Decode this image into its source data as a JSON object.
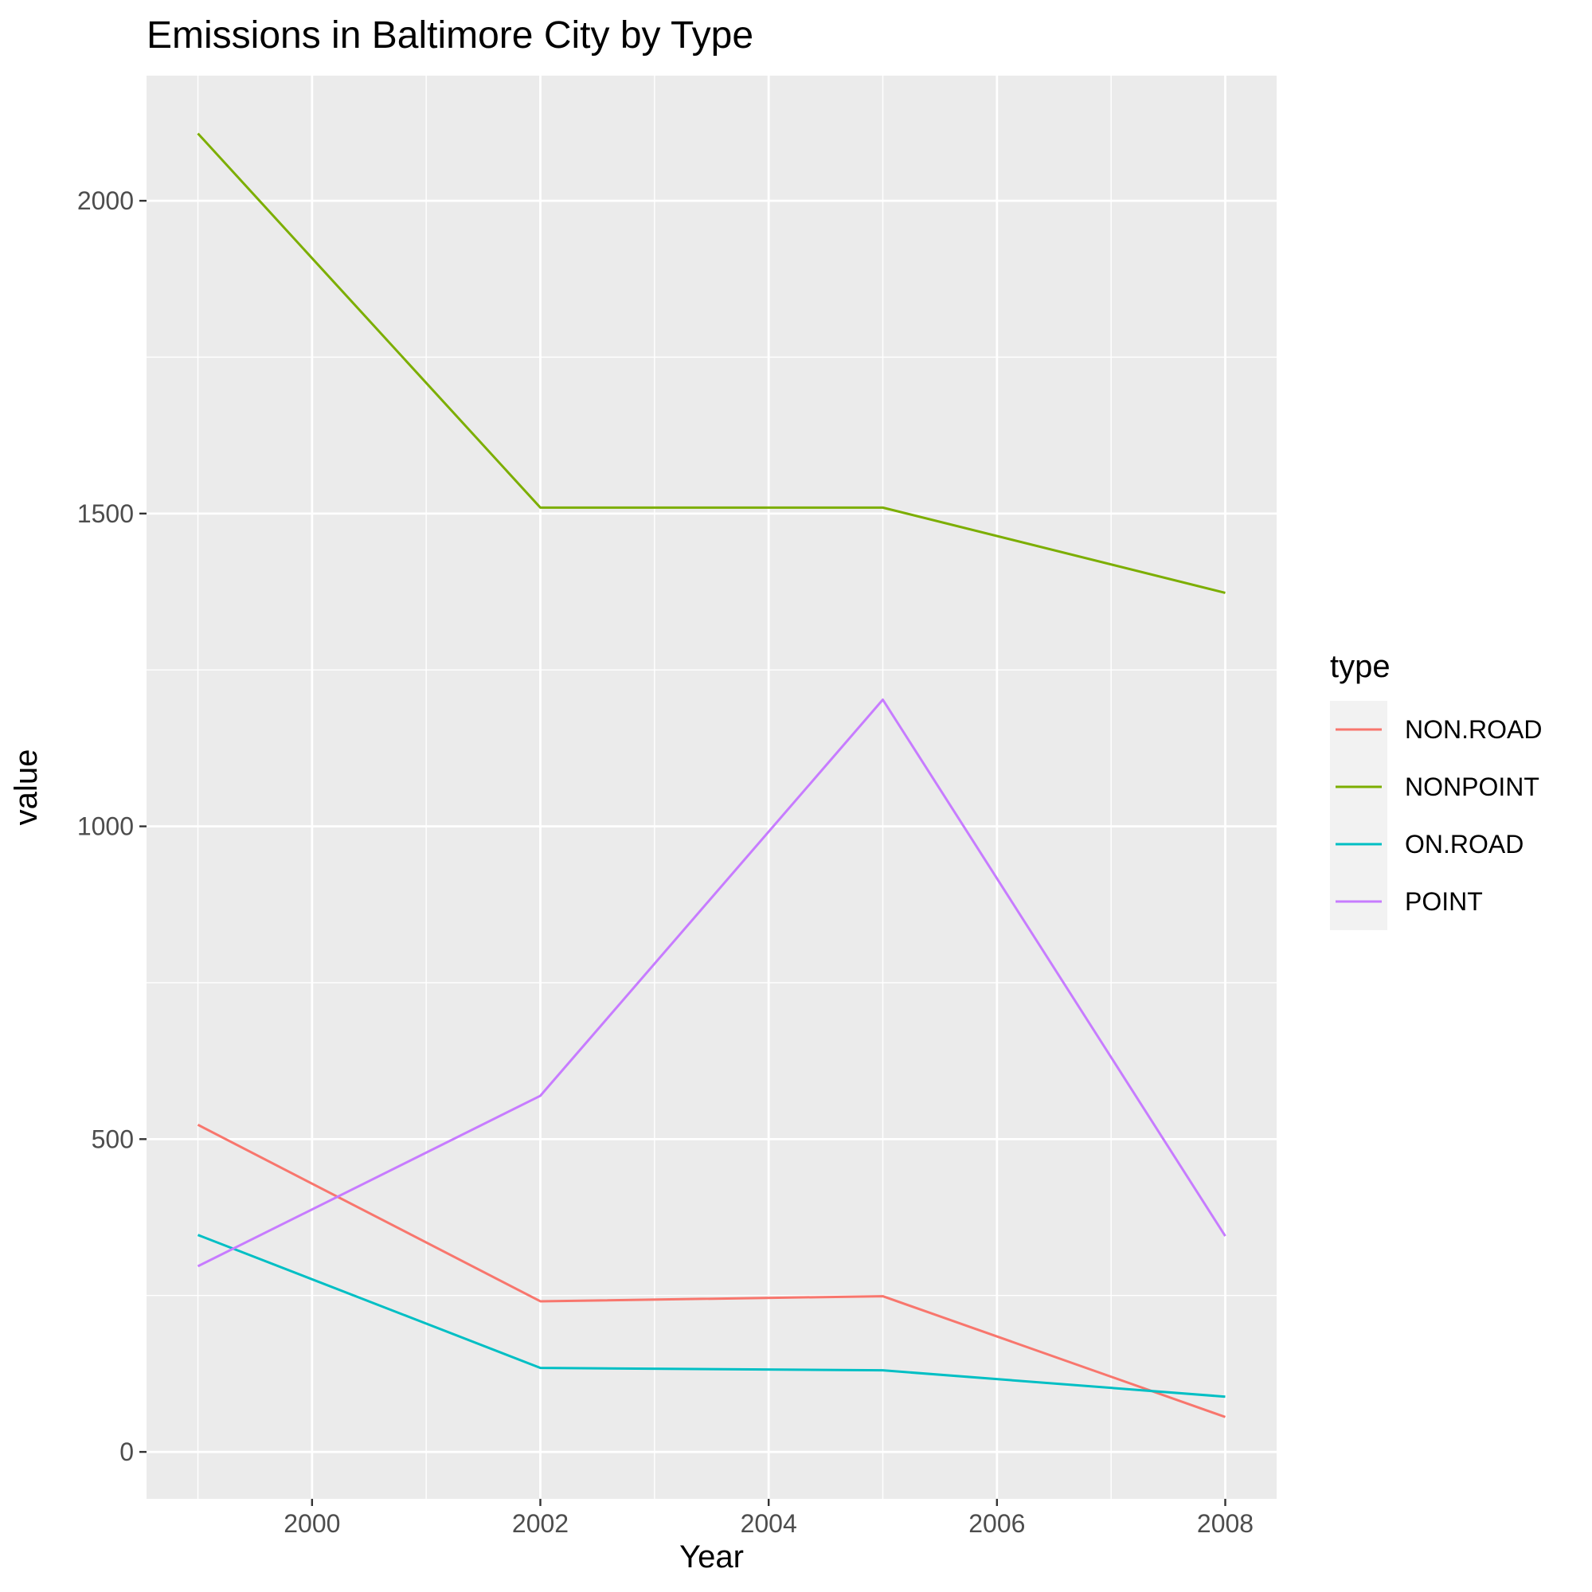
{
  "chart_data": {
    "type": "line",
    "title": "Emissions in Baltimore City by Type",
    "xlabel": "Year",
    "ylabel": "value",
    "x": [
      1999,
      2002,
      2005,
      2008
    ],
    "xlim": [
      1998.55,
      2008.45
    ],
    "ylim": [
      -75,
      2200
    ],
    "x_ticks": [
      2000,
      2002,
      2004,
      2006,
      2008
    ],
    "x_minor": [
      1999,
      2001,
      2003,
      2005,
      2007
    ],
    "y_ticks": [
      0,
      500,
      1000,
      1500,
      2000
    ],
    "y_minor": [
      250,
      750,
      1250,
      1750
    ],
    "grid": true,
    "legend": {
      "title": "type",
      "position": "right"
    },
    "series": [
      {
        "name": "NON.ROAD",
        "color": "#F8766D",
        "values": [
          522.9,
          240.8,
          248.9,
          55.8
        ]
      },
      {
        "name": "NONPOINT",
        "color": "#7CAE00",
        "values": [
          2107.6,
          1509.5,
          1509.5,
          1373.2
        ]
      },
      {
        "name": "ON.ROAD",
        "color": "#00BFC4",
        "values": [
          346.8,
          134.3,
          130.4,
          88.3
        ]
      },
      {
        "name": "POINT",
        "color": "#C77CFF",
        "values": [
          296.8,
          569.3,
          1202.5,
          344.98
        ]
      }
    ]
  }
}
